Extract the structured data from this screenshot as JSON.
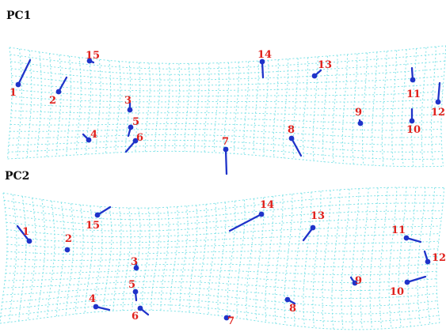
{
  "panels": [
    {
      "id": "pc1",
      "title": "PC1",
      "landmarks": [
        {
          "label": "1"
        },
        {
          "label": "2"
        },
        {
          "label": "3"
        },
        {
          "label": "4"
        },
        {
          "label": "5"
        },
        {
          "label": "6"
        },
        {
          "label": "7"
        },
        {
          "label": "8"
        },
        {
          "label": "9"
        },
        {
          "label": "10"
        },
        {
          "label": "11"
        },
        {
          "label": "12"
        },
        {
          "label": "13"
        },
        {
          "label": "14"
        },
        {
          "label": "15"
        }
      ]
    },
    {
      "id": "pc2",
      "title": "PC2",
      "landmarks": [
        {
          "label": "1"
        },
        {
          "label": "2"
        },
        {
          "label": "3"
        },
        {
          "label": "4"
        },
        {
          "label": "5"
        },
        {
          "label": "6"
        },
        {
          "label": "7"
        },
        {
          "label": "8"
        },
        {
          "label": "9"
        },
        {
          "label": "10"
        },
        {
          "label": "11"
        },
        {
          "label": "12"
        },
        {
          "label": "13"
        },
        {
          "label": "14"
        },
        {
          "label": "15"
        }
      ]
    }
  ],
  "colors": {
    "grid": "#7fe3e8",
    "vector": "#1f33c9",
    "label": "#e0211c",
    "title": "#111111"
  }
}
